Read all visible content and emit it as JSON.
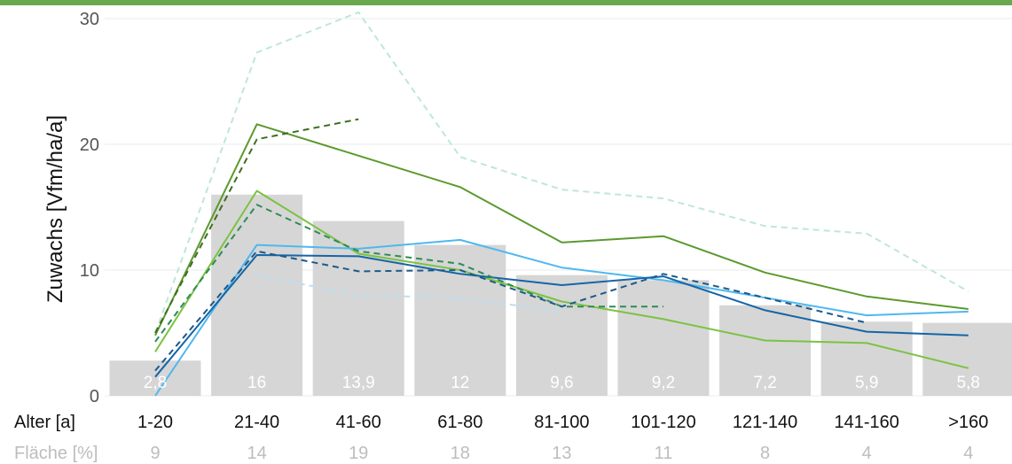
{
  "chart_data": {
    "type": "bar",
    "ylabel": "Zuwachs [Vfm/ha/a]",
    "xlabel": "Alter [a]",
    "categories": [
      "1-20",
      "21-40",
      "41-60",
      "61-80",
      "81-100",
      "101-120",
      "121-140",
      "141-160",
      ">160"
    ],
    "ylim": [
      0,
      30
    ],
    "y_ticks": [
      "0",
      "10",
      "20",
      "30"
    ],
    "grid": true,
    "bars": {
      "values": [
        2.8,
        16,
        13.9,
        12,
        9.6,
        9.2,
        7.2,
        5.9,
        5.8
      ],
      "labels": [
        "2,8",
        "16",
        "13,9",
        "12",
        "9,6",
        "9,2",
        "7,2",
        "5,9",
        "5,8"
      ],
      "color": "#d6d6d6"
    },
    "area_row": {
      "label": "Fläche [%]",
      "values": [
        "9",
        "14",
        "19",
        "18",
        "13",
        "11",
        "8",
        "4",
        "4"
      ]
    },
    "series": [
      {
        "color": "#5b9a2e",
        "style": "solid",
        "values": [
          4.8,
          21.6,
          19.1,
          16.6,
          12.2,
          12.7,
          9.8,
          7.9,
          6.9
        ]
      },
      {
        "color": "#7cc242",
        "style": "solid",
        "values": [
          3.5,
          16.3,
          11.3,
          10.0,
          7.5,
          6.1,
          4.4,
          4.2,
          2.2
        ]
      },
      {
        "color": "#4fb8ee",
        "style": "solid",
        "values": [
          0.0,
          12.0,
          11.7,
          12.4,
          10.2,
          9.2,
          7.8,
          6.4,
          6.7
        ]
      },
      {
        "color": "#1565a8",
        "style": "solid",
        "values": [
          1.5,
          11.2,
          11.1,
          9.7,
          8.8,
          9.5,
          6.8,
          5.1,
          4.8
        ]
      },
      {
        "color": "#bfe7d6",
        "style": "dashed",
        "values": [
          5.0,
          27.3,
          30.5,
          19.0,
          16.4,
          15.7,
          13.5,
          12.9,
          8.3
        ]
      },
      {
        "color": "#3f6e1f",
        "style": "dashed",
        "values": [
          5.0,
          20.4,
          22.0,
          null,
          null,
          null,
          null,
          null,
          null
        ]
      },
      {
        "color": "#2e8b57",
        "style": "dashed",
        "values": [
          4.3,
          15.2,
          11.5,
          10.5,
          7.1,
          7.1,
          null,
          null,
          null
        ]
      },
      {
        "color": "#1c5a8c",
        "style": "dashed",
        "values": [
          2.0,
          11.5,
          9.9,
          10.0,
          7.1,
          9.7,
          7.8,
          5.8,
          null
        ]
      },
      {
        "color": "#bcdff2",
        "style": "dashed",
        "values": [
          null,
          9.6,
          8.0,
          7.8,
          6.7,
          null,
          null,
          null,
          null
        ]
      }
    ]
  }
}
